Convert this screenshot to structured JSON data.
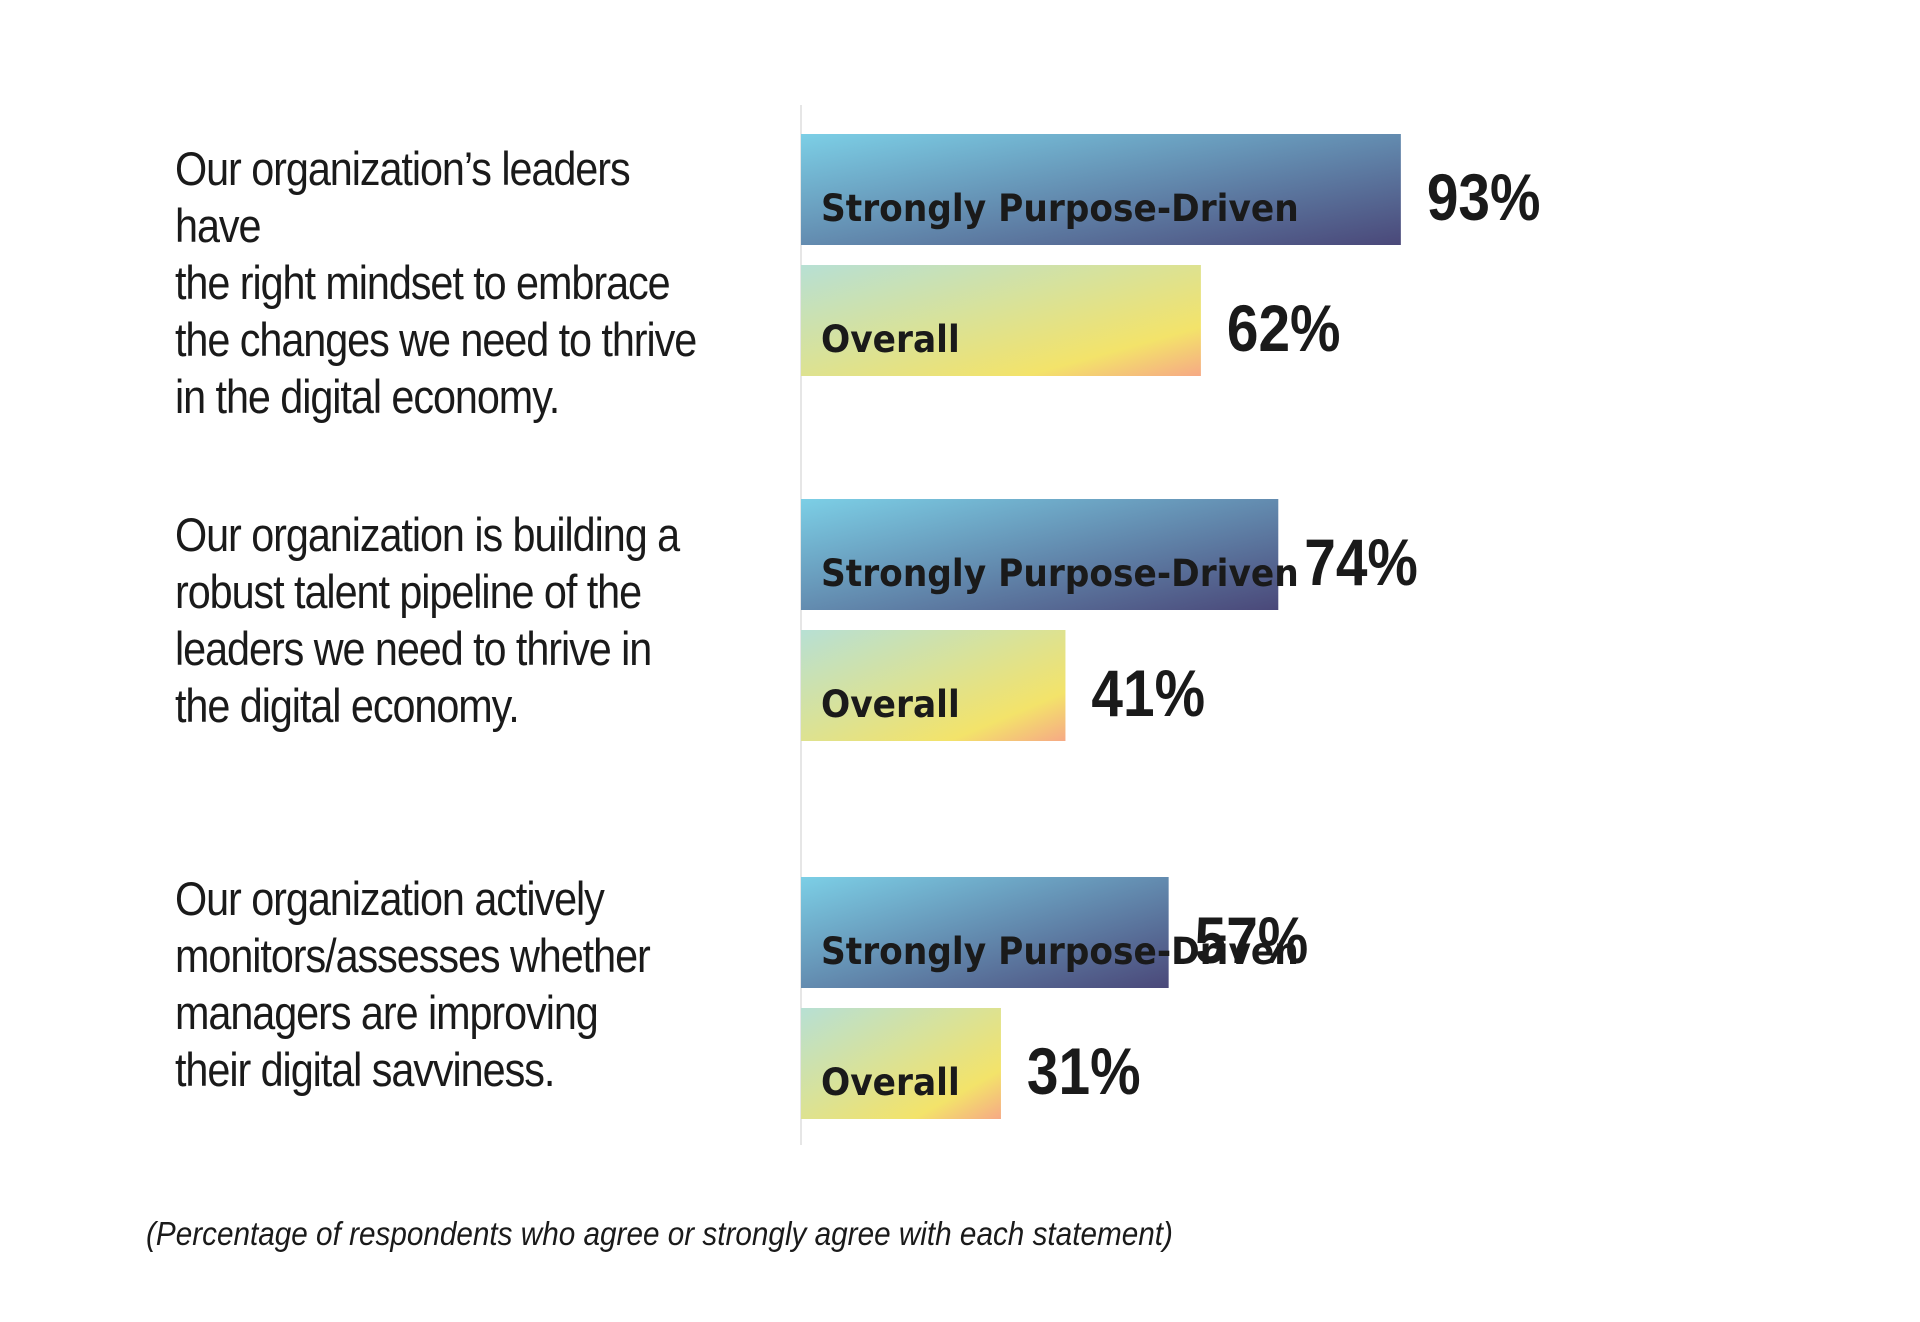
{
  "chart_data": {
    "type": "bar",
    "orientation": "horizontal",
    "categories": [
      "Our organization’s leaders have the right mindset to embrace the changes we need to thrive in the digital economy.",
      "Our organization is building a robust talent pipeline of the leaders we need to thrive in the digital economy.",
      "Our organization actively monitors/assesses whether managers are improving their digital savviness."
    ],
    "series": [
      {
        "name": "Strongly Purpose-Driven",
        "values": [
          93,
          74,
          57
        ],
        "value_labels": [
          "93%",
          "74%",
          "57%"
        ],
        "gradient": [
          "#7ccfe6",
          "#4a4879"
        ]
      },
      {
        "name": "Overall",
        "values": [
          62,
          41,
          31
        ],
        "value_labels": [
          "62%",
          "41%",
          "31%"
        ],
        "gradient": [
          "#b7e0d4",
          "#f3e36a",
          "#f6a985"
        ]
      }
    ],
    "xlim": [
      0,
      100
    ],
    "grid": false,
    "legend": "none",
    "footnote": "(Percentage of respondents who agree or strongly agree with each statement)"
  },
  "statements": [
    {
      "lines": [
        "Our organization’s leaders have",
        "the right mindset to embrace",
        "the changes we need to thrive",
        "in the digital economy."
      ]
    },
    {
      "lines": [
        "Our organization is building a",
        "robust talent pipeline of the",
        "leaders we need to thrive in",
        "the digital economy."
      ]
    },
    {
      "lines": [
        "Our organization actively",
        "monitors/assesses whether",
        "managers are improving",
        "their digital savviness."
      ]
    }
  ],
  "colors": {
    "text": "#1a1a1a",
    "axis_line": "#e6e6e6"
  }
}
